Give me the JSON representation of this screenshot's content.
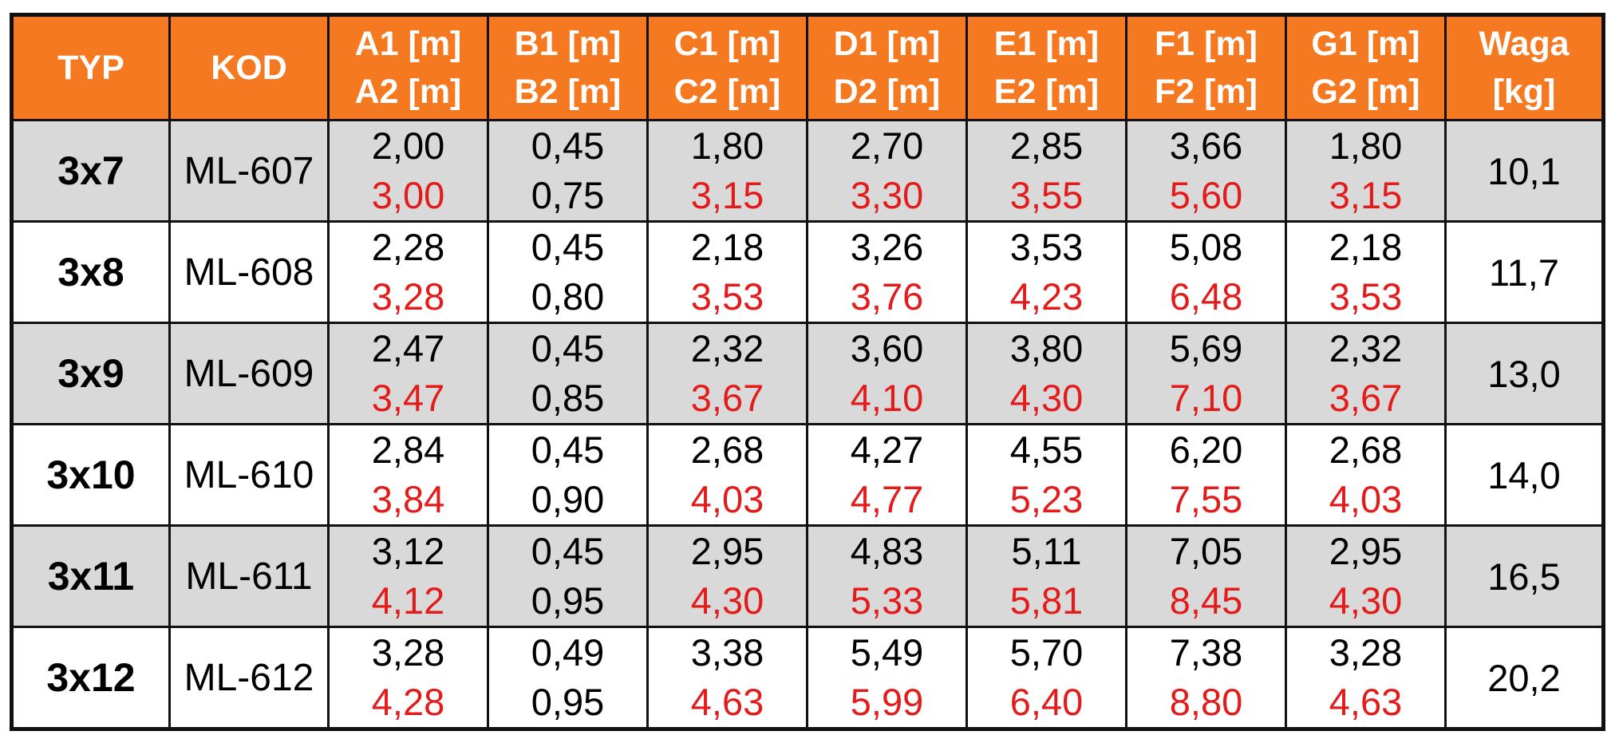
{
  "colors": {
    "header_bg": "#f47920",
    "header_text": "#ffffff",
    "shaded_row": "#d9d9d9",
    "second_value_red": "#e31b1b",
    "border": "#111111"
  },
  "headers": [
    {
      "line1": "TYP",
      "line2": ""
    },
    {
      "line1": "KOD",
      "line2": ""
    },
    {
      "line1": "A1 [m]",
      "line2": "A2 [m]"
    },
    {
      "line1": "B1 [m]",
      "line2": "B2 [m]"
    },
    {
      "line1": "C1 [m]",
      "line2": "C2 [m]"
    },
    {
      "line1": "D1 [m]",
      "line2": "D2 [m]"
    },
    {
      "line1": "E1 [m]",
      "line2": "E2 [m]"
    },
    {
      "line1": "F1 [m]",
      "line2": "F2 [m]"
    },
    {
      "line1": "G1 [m]",
      "line2": "G2 [m]"
    },
    {
      "line1": "Waga",
      "line2": "[kg]"
    }
  ],
  "rows": [
    {
      "typ": "3x7",
      "kod": "ML-607",
      "a": [
        "2,00",
        "3,00"
      ],
      "b": [
        "0,45",
        "0,75"
      ],
      "c": [
        "1,80",
        "3,15"
      ],
      "d": [
        "2,70",
        "3,30"
      ],
      "e": [
        "2,85",
        "3,55"
      ],
      "f": [
        "3,66",
        "5,60"
      ],
      "g": [
        "1,80",
        "3,15"
      ],
      "waga": "10,1"
    },
    {
      "typ": "3x8",
      "kod": "ML-608",
      "a": [
        "2,28",
        "3,28"
      ],
      "b": [
        "0,45",
        "0,80"
      ],
      "c": [
        "2,18",
        "3,53"
      ],
      "d": [
        "3,26",
        "3,76"
      ],
      "e": [
        "3,53",
        "4,23"
      ],
      "f": [
        "5,08",
        "6,48"
      ],
      "g": [
        "2,18",
        "3,53"
      ],
      "waga": "11,7"
    },
    {
      "typ": "3x9",
      "kod": "ML-609",
      "a": [
        "2,47",
        "3,47"
      ],
      "b": [
        "0,45",
        "0,85"
      ],
      "c": [
        "2,32",
        "3,67"
      ],
      "d": [
        "3,60",
        "4,10"
      ],
      "e": [
        "3,80",
        "4,30"
      ],
      "f": [
        "5,69",
        "7,10"
      ],
      "g": [
        "2,32",
        "3,67"
      ],
      "waga": "13,0"
    },
    {
      "typ": "3x10",
      "kod": "ML-610",
      "a": [
        "2,84",
        "3,84"
      ],
      "b": [
        "0,45",
        "0,90"
      ],
      "c": [
        "2,68",
        "4,03"
      ],
      "d": [
        "4,27",
        "4,77"
      ],
      "e": [
        "4,55",
        "5,23"
      ],
      "f": [
        "6,20",
        "7,55"
      ],
      "g": [
        "2,68",
        "4,03"
      ],
      "waga": "14,0"
    },
    {
      "typ": "3x11",
      "kod": "ML-611",
      "a": [
        "3,12",
        "4,12"
      ],
      "b": [
        "0,45",
        "0,95"
      ],
      "c": [
        "2,95",
        "4,30"
      ],
      "d": [
        "4,83",
        "5,33"
      ],
      "e": [
        "5,11",
        "5,81"
      ],
      "f": [
        "7,05",
        "8,45"
      ],
      "g": [
        "2,95",
        "4,30"
      ],
      "waga": "16,5"
    },
    {
      "typ": "3x12",
      "kod": "ML-612",
      "a": [
        "3,28",
        "4,28"
      ],
      "b": [
        "0,49",
        "0,95"
      ],
      "c": [
        "3,38",
        "4,63"
      ],
      "d": [
        "5,49",
        "5,99"
      ],
      "e": [
        "5,70",
        "6,40"
      ],
      "f": [
        "7,38",
        "8,80"
      ],
      "g": [
        "3,28",
        "4,63"
      ],
      "waga": "20,2"
    }
  ]
}
